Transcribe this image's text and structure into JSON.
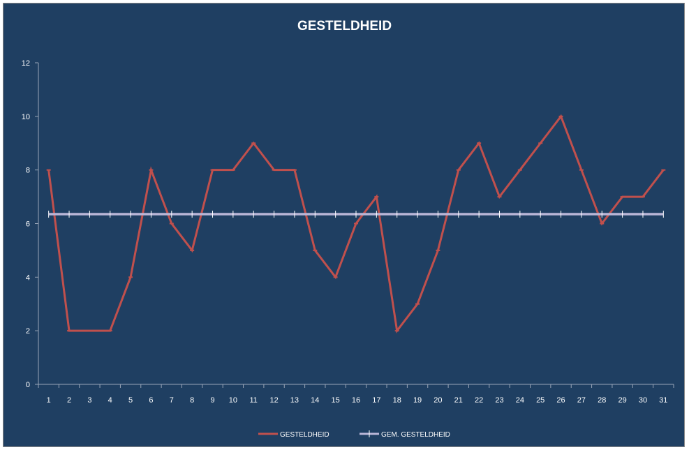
{
  "chart_data": {
    "type": "line",
    "title": "GESTELDHEID",
    "xlabel": "",
    "ylabel": "",
    "categories": [
      "1",
      "2",
      "3",
      "4",
      "5",
      "6",
      "7",
      "8",
      "9",
      "10",
      "11",
      "12",
      "13",
      "14",
      "15",
      "16",
      "17",
      "18",
      "19",
      "20",
      "21",
      "22",
      "23",
      "24",
      "25",
      "26",
      "27",
      "28",
      "29",
      "30",
      "31"
    ],
    "ylim": [
      0,
      12
    ],
    "yticks": [
      0,
      2,
      4,
      6,
      8,
      10,
      12
    ],
    "grid": false,
    "legend_position": "bottom",
    "series": [
      {
        "name": "GESTELDHEID",
        "color": "#c0504d",
        "values": [
          8,
          2,
          2,
          2,
          4,
          8,
          6,
          5,
          8,
          8,
          9,
          8,
          8,
          5,
          4,
          6,
          7,
          2,
          3,
          5,
          8,
          9,
          7,
          8,
          9,
          10,
          8,
          6,
          7,
          7,
          8
        ]
      },
      {
        "name": "GEM. GESTELDHEID",
        "color": "#b9b5d6",
        "values": [
          6.35,
          6.35,
          6.35,
          6.35,
          6.35,
          6.35,
          6.35,
          6.35,
          6.35,
          6.35,
          6.35,
          6.35,
          6.35,
          6.35,
          6.35,
          6.35,
          6.35,
          6.35,
          6.35,
          6.35,
          6.35,
          6.35,
          6.35,
          6.35,
          6.35,
          6.35,
          6.35,
          6.35,
          6.35,
          6.35,
          6.35
        ]
      }
    ]
  }
}
